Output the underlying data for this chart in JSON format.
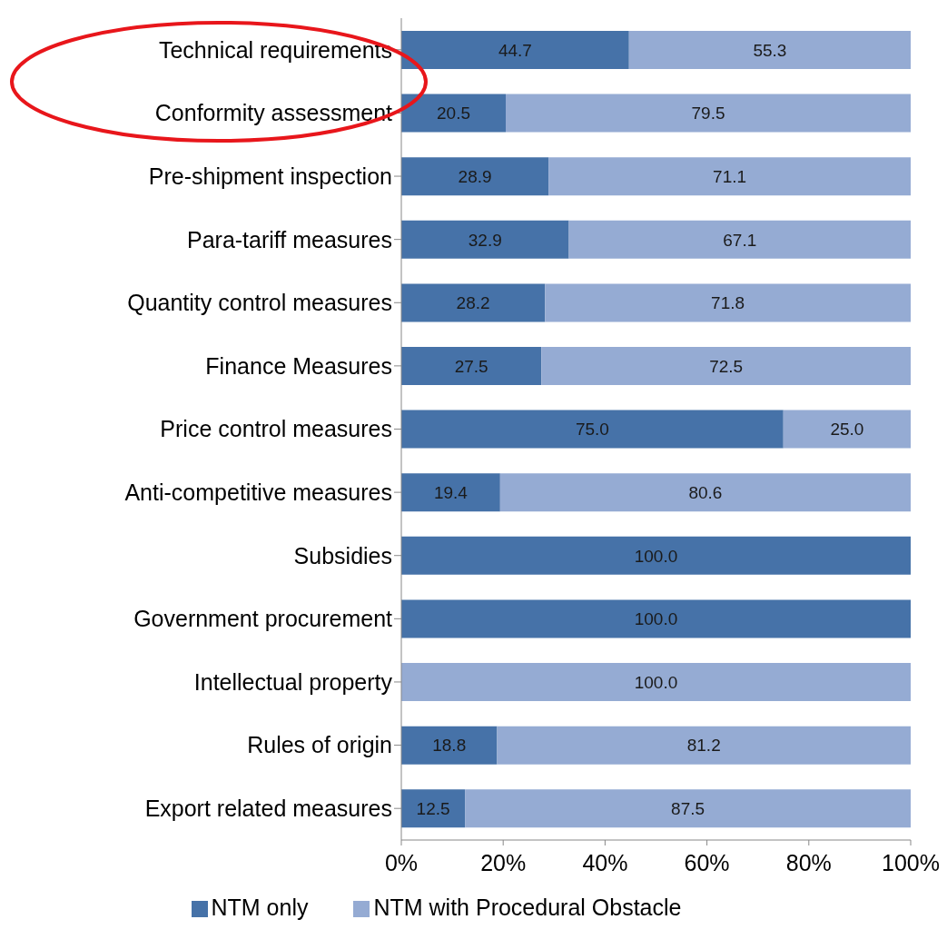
{
  "chart_data": {
    "type": "bar",
    "orientation": "horizontal",
    "stacked": true,
    "categories": [
      "Technical requirements",
      "Conformity assessment",
      "Pre-shipment inspection",
      "Para-tariff measures ",
      "Quantity control measures",
      "Finance Measures ",
      "Price control measures",
      "Anti-competitive measures",
      "Subsidies",
      "Government procurement",
      "Intellectual property",
      "Rules of origin",
      "Export related measures"
    ],
    "series": [
      {
        "name": "NTM only",
        "color": "#4672a8",
        "values": [
          44.7,
          20.5,
          28.9,
          32.9,
          28.2,
          27.5,
          75.0,
          19.4,
          100.0,
          100.0,
          0,
          18.8,
          12.5
        ],
        "value_labels": [
          "44.7",
          "20.5",
          "28.9",
          "32.9",
          "28.2",
          "27.5",
          "75.0",
          "19.4",
          "100.0",
          "100.0",
          null,
          "18.8",
          "12.5"
        ]
      },
      {
        "name": "NTM with Procedural Obstacle",
        "color": "#95abd3",
        "values": [
          55.3,
          79.5,
          71.1,
          67.1,
          71.8,
          72.5,
          25.0,
          80.6,
          0,
          0,
          100.0,
          81.2,
          87.5
        ],
        "value_labels": [
          "55.3",
          "79.5",
          "71.1",
          "67.1",
          "71.8",
          "72.5",
          "25.0",
          "80.6",
          null,
          null,
          "100.0",
          "81.2",
          "87.5"
        ]
      }
    ],
    "xlim": [
      0,
      100
    ],
    "xticks": [
      {
        "value": 0,
        "label": "0%"
      },
      {
        "value": 20,
        "label": "20%"
      },
      {
        "value": 40,
        "label": "40%"
      },
      {
        "value": 60,
        "label": "60%"
      },
      {
        "value": 80,
        "label": "80%"
      },
      {
        "value": 100,
        "label": "100%"
      }
    ],
    "grid": false,
    "legend": "bottom"
  }
}
